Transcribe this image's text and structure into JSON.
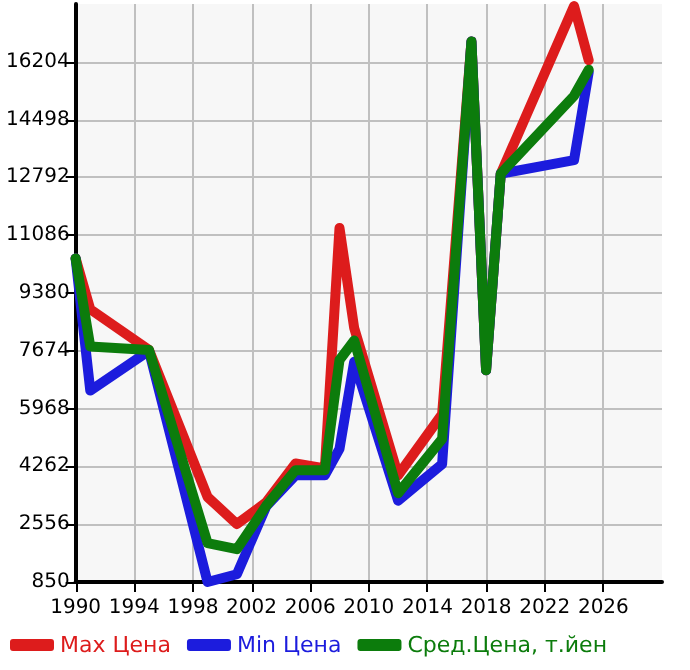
{
  "chart_data": {
    "type": "line",
    "x": [
      1990,
      1991,
      1995,
      1999,
      2001,
      2003,
      2005,
      2007,
      2008,
      2009,
      2012,
      2015,
      2017,
      2018,
      2019,
      2024,
      2025
    ],
    "series": [
      {
        "name": "Max Цена",
        "color": "#dd1c1c",
        "values": [
          10400,
          8900,
          7700,
          3360,
          2560,
          3200,
          4350,
          4200,
          11300,
          8350,
          4000,
          5800,
          16800,
          7100,
          12900,
          17850,
          16250
        ]
      },
      {
        "name": "Min Цена",
        "color": "#1c1cdd",
        "values": [
          10400,
          6500,
          7674,
          850,
          1080,
          3080,
          4000,
          4000,
          4780,
          7350,
          3250,
          4330,
          16800,
          7100,
          12900,
          13300,
          15900
        ]
      },
      {
        "name": "Сред.Цена, т.йен",
        "color": "#0c7c0c",
        "values": [
          10400,
          7800,
          7700,
          2000,
          1820,
          3100,
          4150,
          4150,
          7400,
          7980,
          3470,
          5070,
          16800,
          7100,
          12900,
          15200,
          15970
        ]
      }
    ],
    "xlim": [
      1990,
      2030
    ],
    "xticks": [
      1990,
      1994,
      1998,
      2002,
      2006,
      2010,
      2014,
      2018,
      2022,
      2026
    ],
    "ylim": [
      850,
      17910
    ],
    "yticks": [
      850,
      2556,
      4262,
      5968,
      7674,
      9380,
      11086,
      12792,
      14498,
      16204
    ],
    "grid": true,
    "legend": "bottom",
    "marker": "none",
    "line_style": "solid"
  }
}
